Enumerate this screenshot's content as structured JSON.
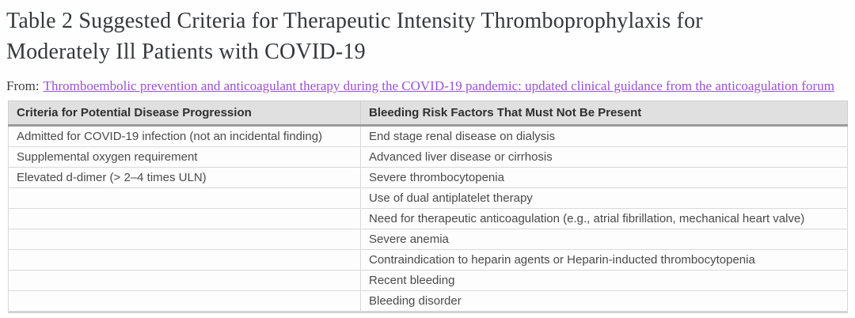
{
  "header": {
    "title": "Table 2 Suggested Criteria for Therapeutic Intensity Thromboprophylaxis for Moderately Ill Patients with COVID-19",
    "title_line1": "Table 2 Suggested Criteria for Therapeutic Intensity Thromboprophylaxis for",
    "title_line2": "Moderately Ill Patients with COVID-19"
  },
  "source": {
    "prefix_label": "From:",
    "link_text": "Thromboembolic prevention and anticoagulant therapy during the COVID-19 pandemic: updated clinical guidance from the anticoagulation forum"
  },
  "table": {
    "columns": [
      "Criteria for Potential Disease Progression",
      "Bleeding Risk Factors That Must Not Be Present"
    ],
    "rows": [
      [
        "Admitted for COVID-19 infection (not an incidental finding)",
        "End stage renal disease on dialysis"
      ],
      [
        "Supplemental oxygen requirement",
        "Advanced liver disease or cirrhosis"
      ],
      [
        "Elevated d-dimer (> 2–4 times ULN)",
        "Severe thrombocytopenia"
      ],
      [
        "",
        "Use of dual antiplatelet therapy"
      ],
      [
        "",
        "Need for therapeutic anticoagulation (e.g., atrial fibrillation, mechanical heart valve)"
      ],
      [
        "",
        "Severe anemia"
      ],
      [
        "",
        "Contraindication to heparin agents or Heparin-inducted thrombocytopenia"
      ],
      [
        "",
        "Recent bleeding"
      ],
      [
        "",
        "Bleeding disorder"
      ]
    ]
  },
  "colors": {
    "link": "#9b51d6",
    "title_text": "#35383b",
    "header_bg": "#e0e0e0",
    "header_bottom_border": "#9b9b9b",
    "cell_border": "#d9d9d9",
    "cell_text": "#4a4a4a",
    "page_bg": "#fefefe"
  }
}
